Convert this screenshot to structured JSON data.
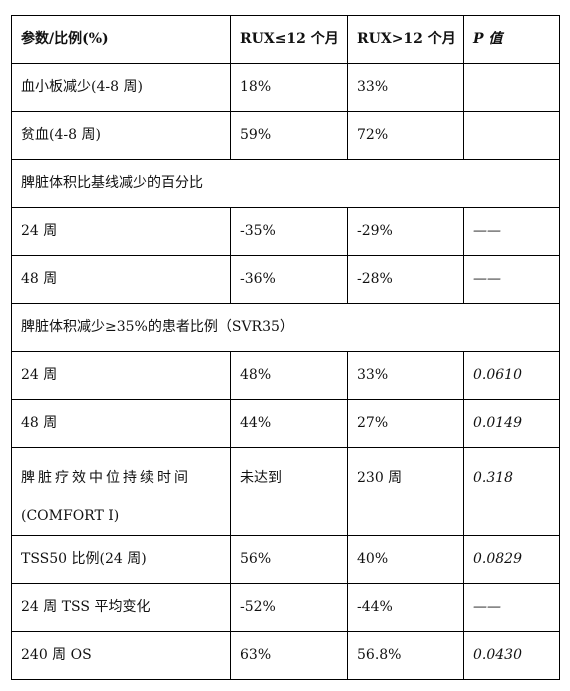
{
  "headers": [
    "参数/比例(%)",
    "RUX≤12 个月",
    "RUX>12 个月",
    "P 值"
  ],
  "rows": [
    {
      "param": "血小板减少(4-8 周)",
      "a": "18%",
      "b": "33%",
      "p": ""
    },
    {
      "param": "贫血(4-8 周)",
      "a": "59%",
      "b": "72%",
      "p": ""
    },
    {
      "section": "脾脏体积比基线减少的百分比"
    },
    {
      "param": "24 周",
      "a": "-35%",
      "b": "-29%",
      "p": "——"
    },
    {
      "param": "48 周",
      "a": "-36%",
      "b": "-28%",
      "p": "——"
    },
    {
      "section": "脾脏体积减少≥35%的患者比例（SVR35）"
    },
    {
      "param": "24 周",
      "a": "48%",
      "b": "33%",
      "p": "0.0610"
    },
    {
      "param": "48 周",
      "a": "44%",
      "b": "27%",
      "p": "0.0149"
    },
    {
      "param": "脾脏疗效中位持续时间",
      "param2": "(COMFORT Ⅰ)",
      "a": "未达到",
      "b": "230 周",
      "p": "0.318"
    },
    {
      "param": "TSS50 比例(24 周)",
      "a": "56%",
      "b": "40%",
      "p": "0.0829"
    },
    {
      "param": "24 周 TSS 平均变化",
      "a": "-52%",
      "b": "-44%",
      "p": "——"
    },
    {
      "param": "240 周 OS",
      "a": "63%",
      "b": "56.8%",
      "p": "0.0430"
    }
  ]
}
